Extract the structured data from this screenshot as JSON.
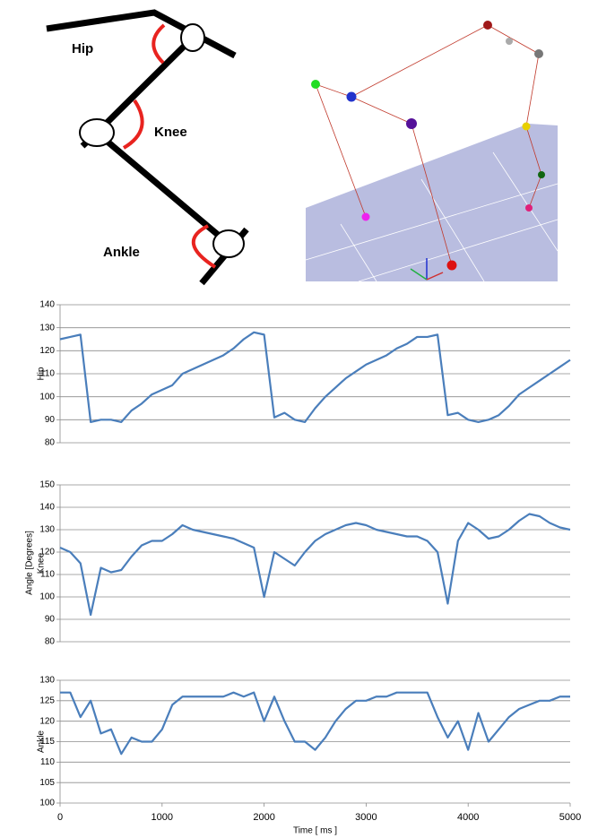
{
  "diagram": {
    "labels": [
      "Hip",
      "Knee",
      "Ankle"
    ]
  },
  "shared_ylabel": "Angle [Degrees]",
  "chart_data": [
    {
      "type": "line",
      "ylabel": "Hip",
      "color": "#4a7ebb",
      "grid": true,
      "x": [
        0,
        100,
        200,
        300,
        400,
        500,
        600,
        700,
        800,
        900,
        1000,
        1100,
        1200,
        1300,
        1400,
        1500,
        1600,
        1700,
        1800,
        1900,
        2000,
        2100,
        2200,
        2300,
        2400,
        2500,
        2600,
        2700,
        2800,
        2900,
        3000,
        3100,
        3200,
        3300,
        3400,
        3500,
        3600,
        3700,
        3800,
        3900,
        4000,
        4100,
        4200,
        4300,
        4400,
        4500,
        4600,
        4700,
        4800,
        4900,
        5000
      ],
      "values": [
        125,
        126,
        127,
        89,
        90,
        90,
        89,
        94,
        97,
        101,
        103,
        105,
        110,
        112,
        114,
        116,
        118,
        121,
        125,
        128,
        127,
        91,
        93,
        90,
        89,
        95,
        100,
        104,
        108,
        111,
        114,
        116,
        118,
        121,
        123,
        126,
        126,
        127,
        92,
        93,
        90,
        89,
        90,
        92,
        96,
        101,
        104,
        107,
        110,
        113,
        116
      ],
      "xlim": [
        0,
        5000
      ],
      "ylim": [
        80,
        140
      ],
      "yticks": [
        80,
        90,
        100,
        110,
        120,
        130,
        140
      ]
    },
    {
      "type": "line",
      "ylabel": "Knee",
      "color": "#4a7ebb",
      "grid": true,
      "x": [
        0,
        100,
        200,
        300,
        400,
        500,
        600,
        700,
        800,
        900,
        1000,
        1100,
        1200,
        1300,
        1400,
        1500,
        1600,
        1700,
        1800,
        1900,
        2000,
        2100,
        2200,
        2300,
        2400,
        2500,
        2600,
        2700,
        2800,
        2900,
        3000,
        3100,
        3200,
        3300,
        3400,
        3500,
        3600,
        3700,
        3800,
        3900,
        4000,
        4100,
        4200,
        4300,
        4400,
        4500,
        4600,
        4700,
        4800,
        4900,
        5000
      ],
      "values": [
        122,
        120,
        115,
        92,
        113,
        111,
        112,
        118,
        123,
        125,
        125,
        128,
        132,
        130,
        129,
        128,
        127,
        126,
        124,
        122,
        100,
        120,
        117,
        114,
        120,
        125,
        128,
        130,
        132,
        133,
        132,
        130,
        129,
        128,
        127,
        127,
        125,
        120,
        97,
        125,
        133,
        130,
        126,
        127,
        130,
        134,
        137,
        136,
        133,
        131,
        130
      ],
      "xlim": [
        0,
        5000
      ],
      "ylim": [
        80,
        150
      ],
      "yticks": [
        80,
        90,
        100,
        110,
        120,
        130,
        140,
        150
      ]
    },
    {
      "type": "line",
      "ylabel": "Ankle",
      "xlabel": "Time [ ms ]",
      "color": "#4a7ebb",
      "grid": true,
      "x": [
        0,
        100,
        200,
        300,
        400,
        500,
        600,
        700,
        800,
        900,
        1000,
        1100,
        1200,
        1300,
        1400,
        1500,
        1600,
        1700,
        1800,
        1900,
        2000,
        2100,
        2200,
        2300,
        2400,
        2500,
        2600,
        2700,
        2800,
        2900,
        3000,
        3100,
        3200,
        3300,
        3400,
        3500,
        3600,
        3700,
        3800,
        3900,
        4000,
        4100,
        4200,
        4300,
        4400,
        4500,
        4600,
        4700,
        4800,
        4900,
        5000
      ],
      "values": [
        127,
        127,
        121,
        125,
        117,
        118,
        112,
        116,
        115,
        115,
        118,
        124,
        126,
        126,
        126,
        126,
        126,
        127,
        126,
        127,
        120,
        126,
        120,
        115,
        115,
        113,
        116,
        120,
        123,
        125,
        125,
        126,
        126,
        127,
        127,
        127,
        127,
        121,
        116,
        120,
        113,
        122,
        115,
        118,
        121,
        123,
        124,
        125,
        125,
        126,
        126
      ],
      "xlim": [
        0,
        5000
      ],
      "xticks": [
        0,
        1000,
        2000,
        3000,
        4000,
        5000
      ],
      "ylim": [
        100,
        130
      ],
      "yticks": [
        100,
        105,
        110,
        115,
        120,
        125,
        130
      ]
    }
  ]
}
